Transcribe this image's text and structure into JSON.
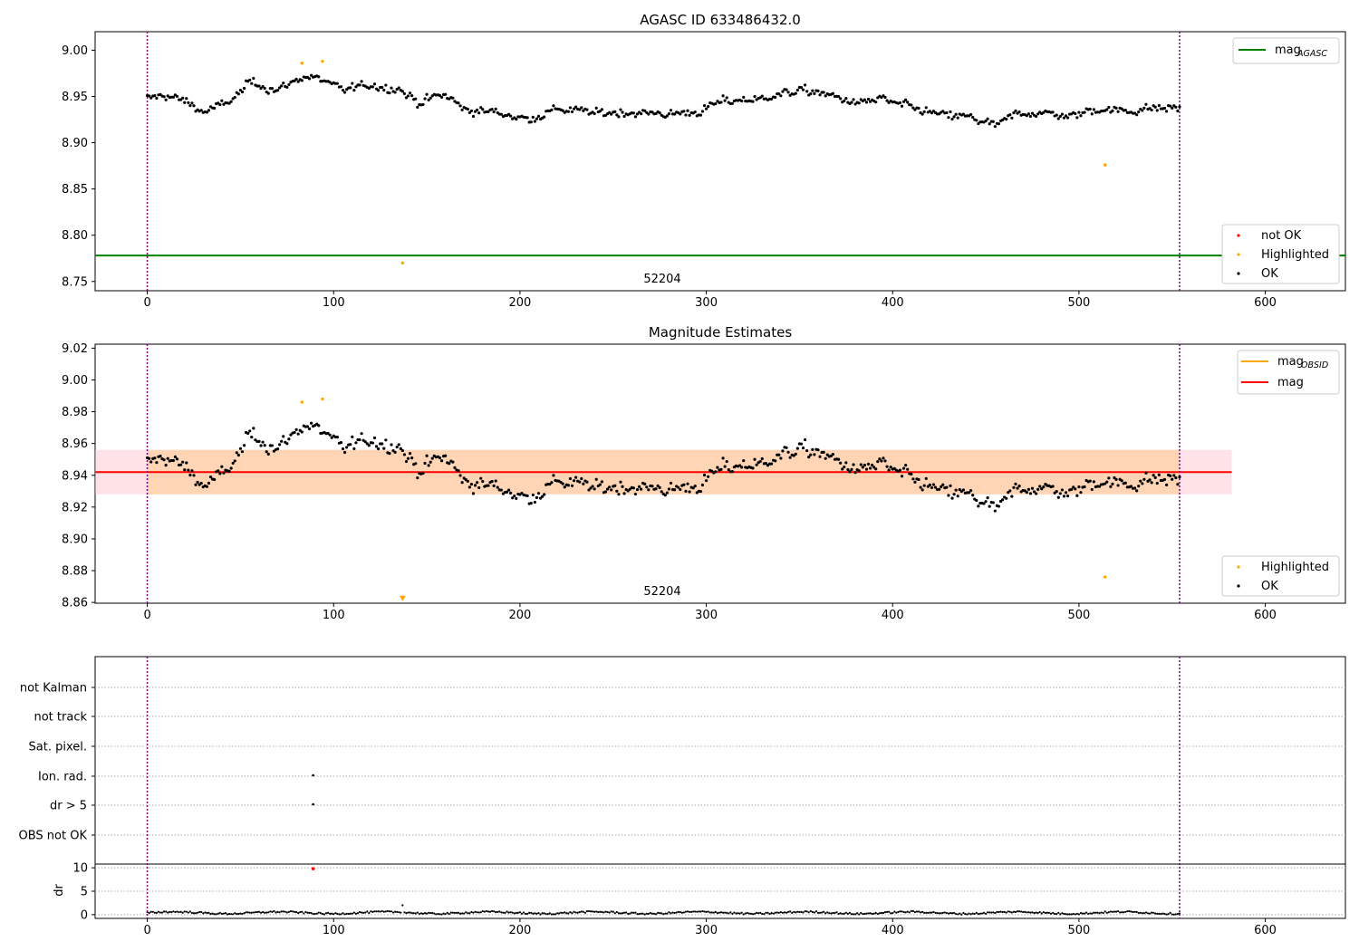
{
  "chart_data": [
    {
      "type": "scatter",
      "title": "AGASC ID 633486432.0",
      "xlim": [
        -28,
        643
      ],
      "ylim": [
        8.74,
        9.02
      ],
      "xticks": [
        0,
        100,
        200,
        300,
        400,
        500,
        600
      ],
      "yticks": [
        8.75,
        8.8,
        8.85,
        8.9,
        8.95,
        9.0
      ],
      "ytick_labels": [
        "8.75",
        "8.80",
        "8.85",
        "8.90",
        "8.95",
        "9.00"
      ],
      "obsid_label": "52204",
      "vlines": [
        0,
        554
      ],
      "vline_color": "#800080",
      "reference_line": {
        "label_base": "mag",
        "label_sub": "AGASC",
        "y": 8.778,
        "color": "#008000"
      },
      "legend_top": {
        "position": "top-right"
      },
      "legend_bottom": {
        "position": "lower-right",
        "entries": [
          {
            "label": "not OK",
            "color": "#ff0000"
          },
          {
            "label": "Highlighted",
            "color": "#ffa500"
          },
          {
            "label": "OK",
            "color": "#000000"
          }
        ]
      },
      "highlighted_points": [
        {
          "x": 83,
          "y": 8.986
        },
        {
          "x": 94,
          "y": 8.988
        },
        {
          "x": 137,
          "y": 8.77
        },
        {
          "x": 514,
          "y": 8.876
        }
      ],
      "ok_series": {
        "n": 555,
        "anchors": [
          [
            0,
            8.948
          ],
          [
            10,
            8.951
          ],
          [
            20,
            8.946
          ],
          [
            30,
            8.933
          ],
          [
            45,
            8.945
          ],
          [
            55,
            8.965
          ],
          [
            70,
            8.957
          ],
          [
            85,
            8.972
          ],
          [
            95,
            8.968
          ],
          [
            105,
            8.957
          ],
          [
            120,
            8.962
          ],
          [
            135,
            8.958
          ],
          [
            145,
            8.943
          ],
          [
            160,
            8.952
          ],
          [
            170,
            8.936
          ],
          [
            190,
            8.932
          ],
          [
            205,
            8.925
          ],
          [
            220,
            8.937
          ],
          [
            240,
            8.932
          ],
          [
            260,
            8.933
          ],
          [
            280,
            8.931
          ],
          [
            295,
            8.933
          ],
          [
            310,
            8.945
          ],
          [
            330,
            8.948
          ],
          [
            350,
            8.957
          ],
          [
            365,
            8.952
          ],
          [
            380,
            8.943
          ],
          [
            395,
            8.947
          ],
          [
            410,
            8.938
          ],
          [
            425,
            8.93
          ],
          [
            440,
            8.928
          ],
          [
            455,
            8.918
          ],
          [
            465,
            8.93
          ],
          [
            480,
            8.933
          ],
          [
            495,
            8.928
          ],
          [
            510,
            8.937
          ],
          [
            525,
            8.934
          ],
          [
            540,
            8.938
          ],
          [
            554,
            8.938
          ]
        ],
        "scatter": 0.006
      }
    },
    {
      "type": "scatter",
      "title": "Magnitude Estimates",
      "xlim": [
        -28,
        643
      ],
      "ylim": [
        8.8595,
        9.0225
      ],
      "xticks": [
        0,
        100,
        200,
        300,
        400,
        500,
        600
      ],
      "yticks": [
        8.86,
        8.88,
        8.9,
        8.92,
        8.94,
        8.96,
        8.98,
        9.0,
        9.02
      ],
      "ytick_labels": [
        "8.86",
        "8.88",
        "8.90",
        "8.92",
        "8.94",
        "8.96",
        "8.98",
        "9.00",
        "9.02"
      ],
      "obsid_label": "52204",
      "vlines": [
        0,
        554
      ],
      "mag_line": {
        "label": "mag",
        "y": 8.942,
        "x_range": [
          -28,
          582
        ],
        "color": "#ff0000"
      },
      "mag_band": {
        "y_range": [
          8.928,
          8.956
        ],
        "x_range": [
          -28,
          582
        ],
        "color": "#ffc0cb"
      },
      "obsid_band": {
        "label_base": "mag",
        "label_sub": "OBSID",
        "y_range": [
          8.928,
          8.956
        ],
        "x_range": [
          0,
          554
        ],
        "color": "#ffa500"
      },
      "legend_top": {
        "position": "top-right"
      },
      "legend_bottom": {
        "position": "lower-right",
        "entries": [
          {
            "label": "Highlighted",
            "color": "#ffa500"
          },
          {
            "label": "OK",
            "color": "#000000"
          }
        ]
      },
      "highlighted_points": [
        {
          "x": 83,
          "y": 8.986
        },
        {
          "x": 94,
          "y": 8.988
        },
        {
          "x": 514,
          "y": 8.876
        }
      ],
      "below_range_marker": {
        "x": 137,
        "y": 8.8625
      }
    },
    {
      "type": "scatter",
      "title": "",
      "xlim": [
        -28,
        643
      ],
      "xticks": [
        0,
        100,
        200,
        300,
        400,
        500,
        600
      ],
      "vlines": [
        0,
        554
      ],
      "flag_labels": [
        "not Kalman",
        "not track",
        "Sat. pixel.",
        "Ion. rad.",
        "dr > 5",
        "OBS not OK"
      ],
      "flag_points": [
        {
          "flag": "Ion. rad.",
          "x": 89
        },
        {
          "flag": "dr > 5",
          "x": 89
        }
      ],
      "dr_panel": {
        "ylabel": "dr",
        "ylim": [
          -0.8,
          10.8
        ],
        "yticks": [
          0,
          5,
          10
        ],
        "ytick_labels": [
          "0",
          "5",
          "10"
        ],
        "typical_level": 0.4,
        "spikes": [
          {
            "x": 137,
            "y": 2.0
          }
        ],
        "outlier": {
          "x": 89,
          "y": 9.8,
          "color": "#ff0000"
        }
      }
    }
  ]
}
